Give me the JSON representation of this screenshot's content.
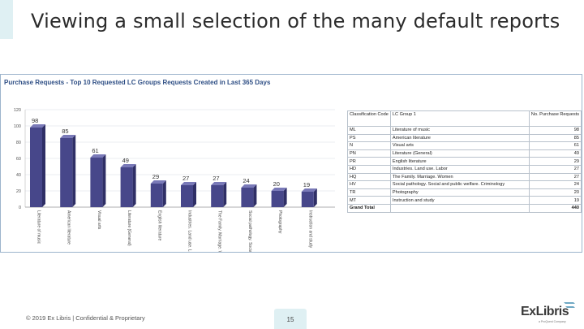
{
  "slide": {
    "title": "Viewing a small selection of the many default reports",
    "footer": "© 2019 Ex Libris | Confidential & Proprietary",
    "page_number": "15"
  },
  "report": {
    "title": "Purchase Requests - Top 10 Requested LC Groups Requests Created in Last 365 Days"
  },
  "chart_data": {
    "type": "bar",
    "title": "Purchase Requests - Top 10 Requested LC Groups Requests Created in Last 365 Days",
    "categories": [
      "Literature of music",
      "American literature",
      "Visual arts",
      "Literature (General)",
      "English literature",
      "Industries. Land use. Labor",
      "The Family. Marriage. Women",
      "Social pathology. Social and public welfare. Criminology",
      "Photography",
      "Instruction and study"
    ],
    "values": [
      98,
      85,
      61,
      49,
      29,
      27,
      27,
      24,
      20,
      19
    ],
    "y_ticks": [
      "0",
      "20",
      "40",
      "60",
      "80",
      "100",
      "120"
    ],
    "ylim": [
      0,
      120
    ],
    "grid": true,
    "colors": {
      "bar": "#47478a",
      "bar_top": "#7a7ab8",
      "bar_side": "#2f2f66"
    }
  },
  "legend_table": {
    "headers": {
      "code": "Classification Code",
      "group": "LC Group 1",
      "count": "No. Purchase Requests"
    },
    "rows": [
      {
        "code": "ML",
        "group": "Literature of music",
        "count": "98"
      },
      {
        "code": "PS",
        "group": "American literature",
        "count": "85"
      },
      {
        "code": "N",
        "group": "Visual arts",
        "count": "61"
      },
      {
        "code": "PN",
        "group": "Literature (General)",
        "count": "49"
      },
      {
        "code": "PR",
        "group": "English literature",
        "count": "29"
      },
      {
        "code": "HD",
        "group": "Industries. Land use. Labor",
        "count": "27"
      },
      {
        "code": "HQ",
        "group": "The Family. Marriage. Women",
        "count": "27"
      },
      {
        "code": "HV",
        "group": "Social pathology. Social and public welfare. Criminology",
        "count": "24"
      },
      {
        "code": "TR",
        "group": "Photography",
        "count": "20"
      },
      {
        "code": "MT",
        "group": "Instruction and study",
        "count": "19"
      }
    ],
    "total": {
      "label": "Grand Total",
      "count": "440"
    }
  },
  "logo": {
    "text": "ExLibris",
    "subtext": "a ProQuest Company",
    "icon": "exlibris-mark-icon"
  }
}
